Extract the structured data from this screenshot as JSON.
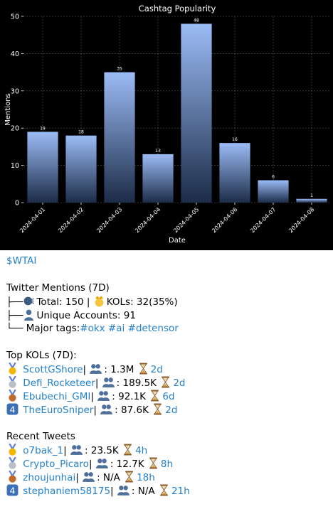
{
  "chart_data": {
    "type": "bar",
    "title": "Cashtag Popularity",
    "xlabel": "Date",
    "ylabel": "Mentions",
    "categories": [
      "2024-04-01",
      "2024-04-02",
      "2024-04-03",
      "2024-04-04",
      "2024-04-05",
      "2024-04-06",
      "2024-04-07",
      "2024-04-08"
    ],
    "values": [
      19,
      18,
      35,
      13,
      48,
      16,
      6,
      1
    ],
    "ylim": [
      0,
      50
    ],
    "yticks": [
      0,
      10,
      20,
      30,
      40,
      50
    ],
    "grid": true,
    "colors": {
      "bar_top": "#9cbcf6",
      "bar_bottom": "#1c2c48",
      "background": "#000000",
      "text": "#ffffff"
    }
  },
  "message": {
    "cashtag": "$WTAI",
    "mentions_heading": "Twitter Mentions (7D)",
    "total_label": "Total: 150",
    "separator": "|",
    "kols_label": "KOLs: 32(35%)",
    "unique_label": "Unique Accounts: 91",
    "tags_label": "Major tags:",
    "tags": [
      "#okx",
      "#ai",
      "#detensor"
    ],
    "top_kols_heading": "Top KOLs (7D):",
    "top_kols": [
      {
        "rank_icon": "gold-medal-icon",
        "name": "ScottGShore",
        "followers": ": 1.3M",
        "age": "2d"
      },
      {
        "rank_icon": "silver-medal-icon",
        "name": "Defi_Rocketeer",
        "followers": ": 189.5K",
        "age": "2d"
      },
      {
        "rank_icon": "bronze-medal-icon",
        "name": "Ebubechi_GMI",
        "followers": ": 92.1K",
        "age": "6d"
      },
      {
        "rank_icon": "keycap-four-icon",
        "name": "TheEuroSniper",
        "followers": ": 87.6K",
        "age": "2d"
      }
    ],
    "recent_heading": "Recent Tweets",
    "recent": [
      {
        "rank_icon": "gold-medal-icon",
        "name": "o7bak_1",
        "followers": ": 23.5K",
        "age": "4h"
      },
      {
        "rank_icon": "silver-medal-icon",
        "name": "Crypto_Picaro",
        "followers": ": 12.7K",
        "age": "8h"
      },
      {
        "rank_icon": "bronze-medal-icon",
        "name": "zhoujunhai",
        "followers": ": N/A",
        "age": "18h"
      },
      {
        "rank_icon": "keycap-four-icon",
        "name": "stephaniem58175",
        "followers": ": N/A",
        "age": "21h"
      }
    ]
  }
}
